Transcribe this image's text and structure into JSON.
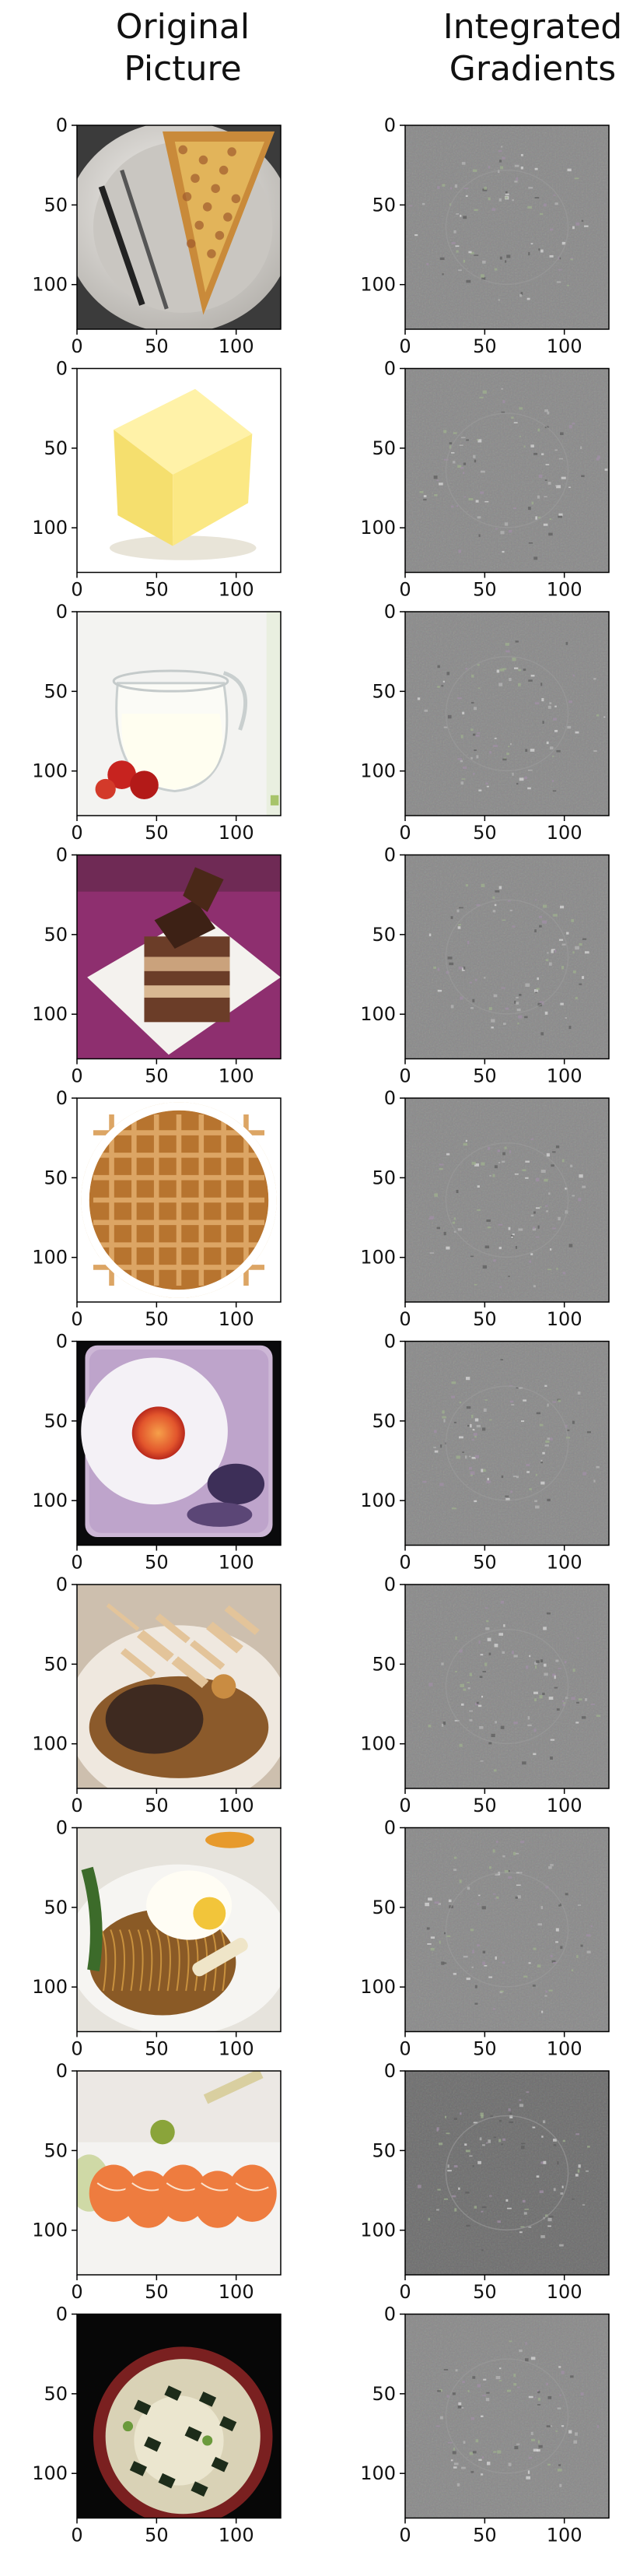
{
  "column_titles": {
    "original": "Original\nPicture",
    "gradients": "Integrated\nGradients"
  },
  "chart_data": {
    "type": "image_grid",
    "columns": [
      "Original\nPicture",
      "Integrated\nGradients"
    ],
    "rows": 10,
    "axes": {
      "xlim": [
        0,
        128
      ],
      "ylim": [
        128,
        0
      ],
      "xticks": [
        0,
        50,
        100
      ],
      "yticks": [
        0,
        50,
        100
      ],
      "xtick_labels": [
        "0",
        "50",
        "100"
      ],
      "ytick_labels": [
        "0",
        "50",
        "100"
      ]
    },
    "panels": [
      {
        "row": 1,
        "original": "pizza-slice-on-plate-with-fork-and-knife",
        "gradients": "integrated-gradients-attribution-map"
      },
      {
        "row": 2,
        "original": "block-of-butter",
        "gradients": "integrated-gradients-attribution-map"
      },
      {
        "row": 3,
        "original": "milk-jug-with-strawberries",
        "gradients": "integrated-gradients-attribution-map"
      },
      {
        "row": 4,
        "original": "chocolate-layer-cake",
        "gradients": "integrated-gradients-attribution-map"
      },
      {
        "row": 5,
        "original": "waffle",
        "gradients": "integrated-gradients-attribution-map"
      },
      {
        "row": 6,
        "original": "fried-egg-on-plate",
        "gradients": "integrated-gradients-attribution-map"
      },
      {
        "row": 7,
        "original": "steak-with-fried-onions",
        "gradients": "integrated-gradients-attribution-map"
      },
      {
        "row": 8,
        "original": "noodles-with-fried-egg",
        "gradients": "integrated-gradients-attribution-map"
      },
      {
        "row": 9,
        "original": "salmon-sashimi",
        "gradients": "integrated-gradients-attribution-map"
      },
      {
        "row": 10,
        "original": "miso-soup-bowl",
        "gradients": "integrated-gradients-attribution-map"
      }
    ]
  },
  "colors": {
    "axis": "#000000",
    "gradient_background": "#8a8a8a",
    "gradient_background_dark": "#6e6e6e"
  }
}
